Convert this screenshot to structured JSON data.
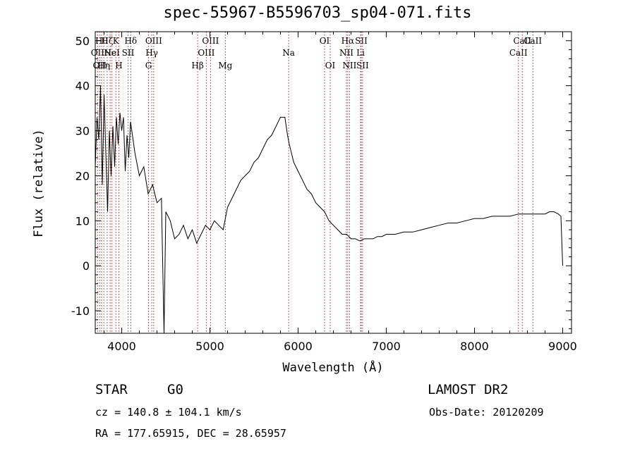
{
  "chart_data": {
    "type": "line",
    "title": "spec-55967-B5596703_sp04-071.fits",
    "xlabel": "Wavelength (Å)",
    "ylabel": "Flux (relative)",
    "xlim": [
      3700,
      9100
    ],
    "ylim": [
      -15,
      52
    ],
    "x_ticks": [
      4000,
      5000,
      6000,
      7000,
      8000,
      9000
    ],
    "y_ticks": [
      -10,
      0,
      10,
      20,
      30,
      40,
      50
    ],
    "grid": false,
    "series": [
      {
        "x": [
          3700,
          3720,
          3740,
          3760,
          3780,
          3800,
          3820,
          3840,
          3860,
          3880,
          3900,
          3920,
          3940,
          3960,
          3980,
          4000,
          4020,
          4040,
          4060,
          4080,
          4100,
          4150,
          4200,
          4250,
          4300,
          4350,
          4400,
          4450,
          4480,
          4500,
          4550,
          4600,
          4650,
          4700,
          4750,
          4800,
          4850,
          4900,
          4950,
          5000,
          5050,
          5100,
          5150,
          5200,
          5250,
          5300,
          5350,
          5400,
          5450,
          5500,
          5550,
          5600,
          5650,
          5700,
          5750,
          5800,
          5850,
          5880,
          5900,
          5950,
          6000,
          6050,
          6100,
          6150,
          6200,
          6250,
          6300,
          6350,
          6400,
          6450,
          6500,
          6550,
          6600,
          6650,
          6700,
          6750,
          6800,
          6850,
          6900,
          6950,
          7000,
          7100,
          7200,
          7300,
          7400,
          7500,
          7600,
          7700,
          7800,
          7900,
          8000,
          8100,
          8200,
          8300,
          8400,
          8500,
          8600,
          8700,
          8800,
          8850,
          8900,
          8950,
          8980,
          9000
        ],
        "y": [
          22,
          33,
          28,
          40,
          18,
          38,
          25,
          12,
          30,
          20,
          31,
          22,
          33,
          27,
          34,
          30,
          33,
          21,
          29,
          24,
          32,
          25,
          20,
          22,
          16,
          18,
          14,
          15,
          -15,
          12,
          10,
          6,
          7,
          9,
          6,
          8,
          5,
          7,
          9,
          8,
          10,
          9,
          8,
          13,
          15,
          17,
          19,
          20,
          21,
          23,
          24,
          26,
          28,
          29,
          31,
          33,
          33,
          29,
          27,
          23,
          21,
          19,
          17,
          16,
          14,
          13,
          12,
          10,
          9,
          8,
          7,
          7,
          6,
          6,
          5.5,
          6,
          6,
          6,
          6.5,
          6.5,
          7,
          7,
          7.5,
          7.5,
          8,
          8.5,
          9,
          9.5,
          9.5,
          10,
          10.5,
          10.5,
          11,
          11,
          11,
          11.5,
          11.5,
          11.5,
          11.5,
          12,
          12,
          11.5,
          11,
          0
        ]
      }
    ],
    "lines": [
      {
        "wl": 3727,
        "label": "OII",
        "row": 1
      },
      {
        "wl": 3750,
        "label": "OII",
        "row": 2
      },
      {
        "wl": 3771,
        "label": "Hθ",
        "row": 0
      },
      {
        "wl": 3797,
        "label": "Hη",
        "row": 2
      },
      {
        "wl": 3835,
        "label": "Hζ",
        "row": 0
      },
      {
        "wl": 3869,
        "label": "Ne",
        "row": 1
      },
      {
        "wl": 3889,
        "label": "HeI",
        "row": 1
      },
      {
        "wl": 3934,
        "label": "K",
        "row": 0
      },
      {
        "wl": 3968,
        "label": "H",
        "row": 2
      },
      {
        "wl": 4072,
        "label": "SII",
        "row": 1
      },
      {
        "wl": 4102,
        "label": "Hδ",
        "row": 0
      },
      {
        "wl": 4304,
        "label": "G",
        "row": 2
      },
      {
        "wl": 4341,
        "label": "Hγ",
        "row": 1
      },
      {
        "wl": 4363,
        "label": "OIII",
        "row": 0
      },
      {
        "wl": 4861,
        "label": "Hβ",
        "row": 2
      },
      {
        "wl": 4959,
        "label": "OIII",
        "row": 1
      },
      {
        "wl": 5007,
        "label": "OIII",
        "row": 0
      },
      {
        "wl": 5175,
        "label": "Mg",
        "row": 2
      },
      {
        "wl": 5893,
        "label": "Na",
        "row": 1
      },
      {
        "wl": 6300,
        "label": "OI",
        "row": 0
      },
      {
        "wl": 6364,
        "label": "OI",
        "row": 2
      },
      {
        "wl": 6548,
        "label": "NII",
        "row": 1
      },
      {
        "wl": 6563,
        "label": "Hα",
        "row": 0
      },
      {
        "wl": 6583,
        "label": "NII",
        "row": 2
      },
      {
        "wl": 6708,
        "label": "Li",
        "row": 1
      },
      {
        "wl": 6716,
        "label": "SII",
        "row": 0
      },
      {
        "wl": 6731,
        "label": "SII",
        "row": 2
      },
      {
        "wl": 8498,
        "label": "CaII",
        "row": 1
      },
      {
        "wl": 8542,
        "label": "CaII",
        "row": 0
      },
      {
        "wl": 8662,
        "label": "CaII",
        "row": 0
      }
    ]
  },
  "info": {
    "class": "STAR",
    "subclass": "G0",
    "survey": "LAMOST DR2",
    "cz": "cz = 140.8 ± 104.1 km/s",
    "obs_date": "Obs-Date: 20120209",
    "coords": "RA = 177.65915, DEC =  28.65957"
  }
}
